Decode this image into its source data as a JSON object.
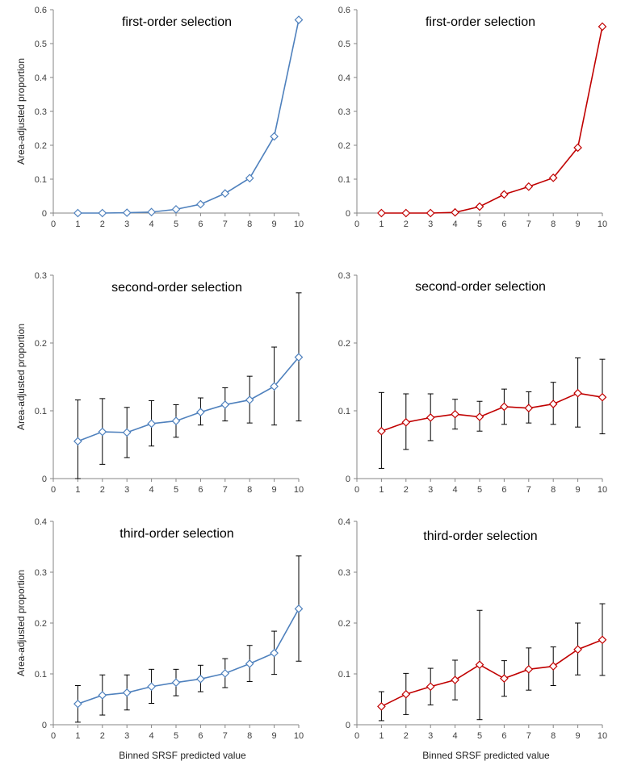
{
  "chart_data": [
    {
      "type": "line",
      "title": "first-order selection",
      "xlabel": "",
      "ylabel": "Area-adjusted proportion",
      "color": "#4f81bd",
      "marker": "diamond-open",
      "xlim": [
        0,
        10
      ],
      "ylim": [
        0,
        0.6
      ],
      "xticks": [
        0,
        1,
        2,
        3,
        4,
        5,
        6,
        7,
        8,
        9,
        10
      ],
      "yticks": [
        0,
        0.1,
        0.2,
        0.3,
        0.4,
        0.5,
        0.6
      ],
      "x": [
        1,
        2,
        3,
        4,
        5,
        6,
        7,
        8,
        9,
        10
      ],
      "values": [
        0.0,
        0.0,
        0.001,
        0.003,
        0.011,
        0.026,
        0.058,
        0.103,
        0.226,
        0.57
      ],
      "error_low": [],
      "error_high": []
    },
    {
      "type": "line",
      "title": "first-order selection",
      "xlabel": "",
      "ylabel": "",
      "color": "#c00000",
      "marker": "diamond-open",
      "xlim": [
        0,
        10
      ],
      "ylim": [
        0,
        0.6
      ],
      "xticks": [
        0,
        1,
        2,
        3,
        4,
        5,
        6,
        7,
        8,
        9,
        10
      ],
      "yticks": [
        0,
        0.1,
        0.2,
        0.3,
        0.4,
        0.5,
        0.6
      ],
      "x": [
        1,
        2,
        3,
        4,
        5,
        6,
        7,
        8,
        9,
        10
      ],
      "values": [
        0.0,
        0.0,
        0.0,
        0.002,
        0.019,
        0.055,
        0.078,
        0.104,
        0.193,
        0.55
      ],
      "error_low": [],
      "error_high": []
    },
    {
      "type": "line",
      "title": "second-order selection",
      "xlabel": "",
      "ylabel": "Area-adjusted proportion",
      "color": "#4f81bd",
      "marker": "diamond-open",
      "xlim": [
        0,
        10
      ],
      "ylim": [
        0,
        0.3
      ],
      "xticks": [
        0,
        1,
        2,
        3,
        4,
        5,
        6,
        7,
        8,
        9,
        10
      ],
      "yticks": [
        0,
        0.1,
        0.2,
        0.3
      ],
      "x": [
        1,
        2,
        3,
        4,
        5,
        6,
        7,
        8,
        9,
        10
      ],
      "values": [
        0.055,
        0.069,
        0.068,
        0.081,
        0.085,
        0.098,
        0.109,
        0.116,
        0.136,
        0.179
      ],
      "error_low": [
        0.0,
        0.021,
        0.031,
        0.048,
        0.061,
        0.079,
        0.085,
        0.082,
        0.079,
        0.085
      ],
      "error_high": [
        0.116,
        0.118,
        0.105,
        0.115,
        0.109,
        0.119,
        0.134,
        0.151,
        0.194,
        0.274
      ]
    },
    {
      "type": "line",
      "title": "second-order selection",
      "xlabel": "",
      "ylabel": "",
      "color": "#c00000",
      "marker": "diamond-open",
      "xlim": [
        0,
        10
      ],
      "ylim": [
        0,
        0.3
      ],
      "xticks": [
        0,
        1,
        2,
        3,
        4,
        5,
        6,
        7,
        8,
        9,
        10
      ],
      "yticks": [
        0,
        0.1,
        0.2,
        0.3
      ],
      "x": [
        1,
        2,
        3,
        4,
        5,
        6,
        7,
        8,
        9,
        10
      ],
      "values": [
        0.07,
        0.083,
        0.09,
        0.095,
        0.091,
        0.106,
        0.104,
        0.11,
        0.126,
        0.12
      ],
      "error_low": [
        0.015,
        0.043,
        0.056,
        0.073,
        0.07,
        0.08,
        0.082,
        0.08,
        0.076,
        0.066
      ],
      "error_high": [
        0.127,
        0.125,
        0.125,
        0.117,
        0.114,
        0.132,
        0.128,
        0.142,
        0.178,
        0.176
      ]
    },
    {
      "type": "line",
      "title": "third-order selection",
      "xlabel": "Binned SRSF predicted value",
      "ylabel": "Area-adjusted proportion",
      "color": "#4f81bd",
      "marker": "diamond-open",
      "xlim": [
        0,
        10
      ],
      "ylim": [
        0,
        0.4
      ],
      "xticks": [
        0,
        1,
        2,
        3,
        4,
        5,
        6,
        7,
        8,
        9,
        10
      ],
      "yticks": [
        0,
        0.1,
        0.2,
        0.3,
        0.4
      ],
      "x": [
        1,
        2,
        3,
        4,
        5,
        6,
        7,
        8,
        9,
        10
      ],
      "values": [
        0.041,
        0.058,
        0.063,
        0.075,
        0.083,
        0.09,
        0.101,
        0.12,
        0.141,
        0.228
      ],
      "error_low": [
        0.005,
        0.019,
        0.029,
        0.042,
        0.057,
        0.065,
        0.073,
        0.085,
        0.099,
        0.125
      ],
      "error_high": [
        0.077,
        0.098,
        0.098,
        0.109,
        0.109,
        0.117,
        0.13,
        0.156,
        0.184,
        0.332
      ]
    },
    {
      "type": "line",
      "title": "third-order selection",
      "xlabel": "Binned SRSF predicted value",
      "ylabel": "",
      "color": "#c00000",
      "marker": "diamond-open",
      "xlim": [
        0,
        10
      ],
      "ylim": [
        0,
        0.4
      ],
      "xticks": [
        0,
        1,
        2,
        3,
        4,
        5,
        6,
        7,
        8,
        9,
        10
      ],
      "yticks": [
        0,
        0.1,
        0.2,
        0.3,
        0.4
      ],
      "x": [
        1,
        2,
        3,
        4,
        5,
        6,
        7,
        8,
        9,
        10
      ],
      "values": [
        0.036,
        0.06,
        0.075,
        0.088,
        0.118,
        0.091,
        0.109,
        0.115,
        0.148,
        0.167
      ],
      "error_low": [
        0.008,
        0.02,
        0.039,
        0.049,
        0.01,
        0.056,
        0.068,
        0.077,
        0.098,
        0.097
      ],
      "error_high": [
        0.065,
        0.101,
        0.111,
        0.127,
        0.225,
        0.126,
        0.151,
        0.153,
        0.2,
        0.238
      ]
    }
  ]
}
